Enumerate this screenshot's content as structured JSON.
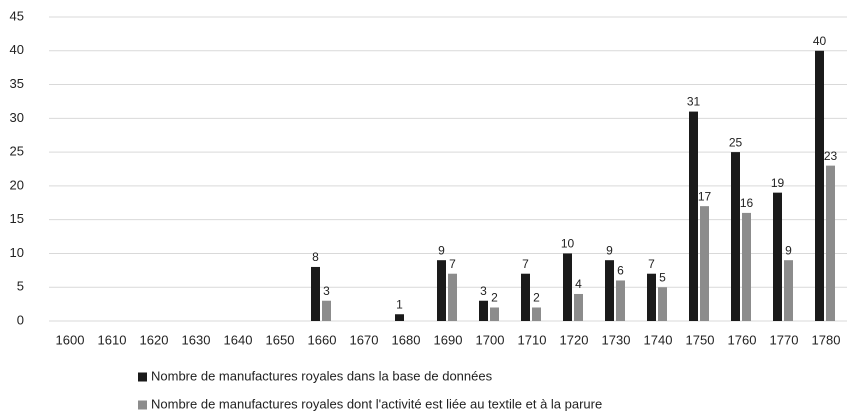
{
  "chart_data": {
    "type": "bar",
    "categories": [
      "1600",
      "1610",
      "1620",
      "1630",
      "1640",
      "1650",
      "1660",
      "1670",
      "1680",
      "1690",
      "1700",
      "1710",
      "1720",
      "1730",
      "1740",
      "1750",
      "1760",
      "1770",
      "1780"
    ],
    "series": [
      {
        "name": "Nombre de manufactures royales dans la base de données",
        "color": "#1a1a1a",
        "values": [
          0,
          0,
          0,
          0,
          0,
          0,
          8,
          0,
          1,
          9,
          3,
          7,
          10,
          9,
          7,
          31,
          25,
          19,
          40
        ]
      },
      {
        "name": "Nombre de manufactures royales dont l'activité est liée au textile et à la parure",
        "color": "#8c8c8c",
        "values": [
          0,
          0,
          0,
          0,
          0,
          0,
          3,
          0,
          0,
          7,
          2,
          2,
          4,
          6,
          5,
          17,
          16,
          9,
          23
        ]
      }
    ],
    "ylim": [
      0,
      45
    ],
    "yticks": [
      0,
      5,
      10,
      15,
      20,
      25,
      30,
      35,
      40,
      45
    ],
    "grid": true
  }
}
